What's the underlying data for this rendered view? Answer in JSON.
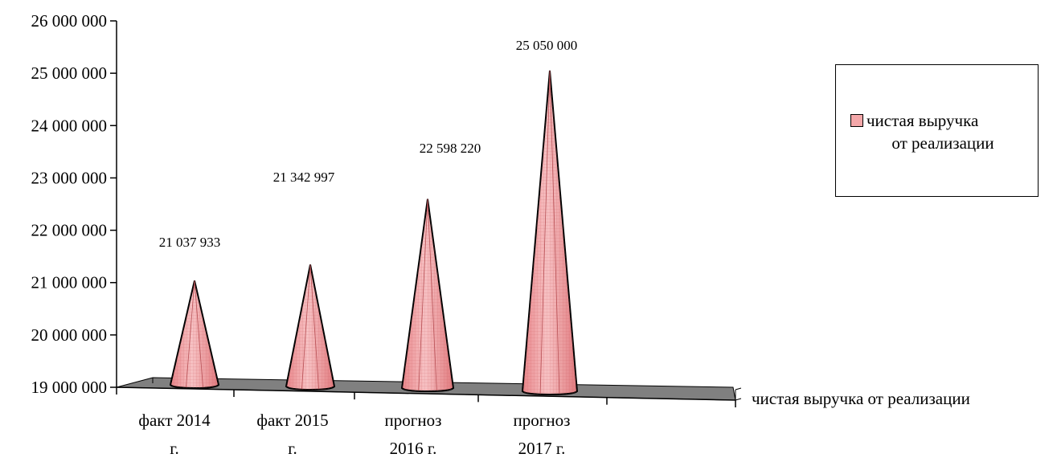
{
  "chart_data": {
    "type": "bar",
    "style": "3d-cone",
    "categories": [
      [
        "факт 2014",
        "г."
      ],
      [
        "факт 2015",
        "г."
      ],
      [
        "прогноз",
        "2016 г."
      ],
      [
        "прогноз",
        "2017 г."
      ]
    ],
    "series": [
      {
        "name": "чистая выручка от реализации",
        "values": [
          21037933,
          21342997,
          22598220,
          25050000
        ],
        "labels": [
          "21 037 933",
          "21 342 997",
          "22 598 220",
          "25 050 000"
        ],
        "color": "#f4a7a9"
      }
    ],
    "ylim": [
      19000000,
      26000000
    ],
    "ytick_labels": [
      "19 000 000",
      "20 000 000",
      "21 000 000",
      "22 000 000",
      "23 000 000",
      "24 000 000",
      "25 000 000",
      "26 000 000"
    ],
    "series_axis_label": "чистая выручка от реализации",
    "legend": {
      "position": "right",
      "line1": "чистая выручка",
      "line2": "от реализации"
    },
    "floor_color": "#808080",
    "grid": false
  }
}
